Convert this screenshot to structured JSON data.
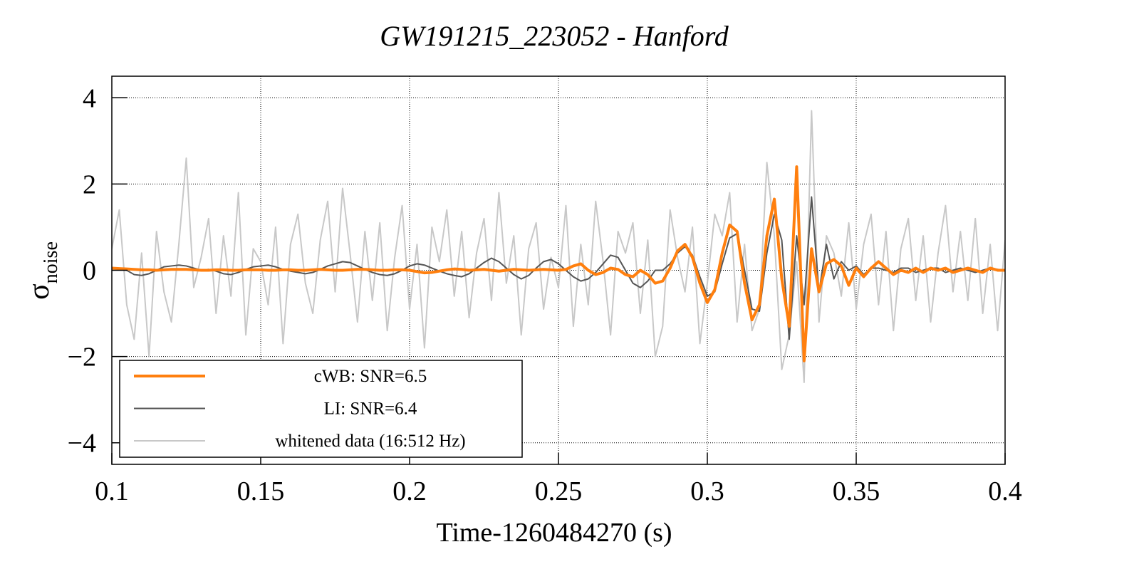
{
  "chart_data": {
    "type": "line",
    "title": "GW191215_223052 - Hanford",
    "xlabel": "Time-1260484270 (s)",
    "ylabel": "σ",
    "ylabel_sub": "noise",
    "xlim": [
      0.1,
      0.4
    ],
    "ylim": [
      -4.5,
      4.5
    ],
    "xticks": [
      0.1,
      0.15,
      0.2,
      0.25,
      0.3,
      0.35,
      0.4
    ],
    "yticks": [
      {
        "value": -4,
        "label": "−4"
      },
      {
        "value": -2,
        "label": "−2"
      },
      0,
      2,
      4
    ],
    "grid": true,
    "legend": "lower left",
    "x": [
      0.1,
      0.1025,
      0.105,
      0.1075,
      0.11,
      0.1125,
      0.115,
      0.1175,
      0.12,
      0.1225,
      0.125,
      0.1275,
      0.13,
      0.1325,
      0.135,
      0.1375,
      0.14,
      0.1425,
      0.145,
      0.1475,
      0.15,
      0.1525,
      0.155,
      0.1575,
      0.16,
      0.1625,
      0.165,
      0.1675,
      0.17,
      0.1725,
      0.175,
      0.1775,
      0.18,
      0.1825,
      0.185,
      0.1875,
      0.19,
      0.1925,
      0.195,
      0.1975,
      0.2,
      0.2025,
      0.205,
      0.2075,
      0.21,
      0.2125,
      0.215,
      0.2175,
      0.22,
      0.2225,
      0.225,
      0.2275,
      0.23,
      0.2325,
      0.235,
      0.2375,
      0.24,
      0.2425,
      0.245,
      0.2475,
      0.25,
      0.2525,
      0.255,
      0.2575,
      0.26,
      0.2625,
      0.265,
      0.2675,
      0.27,
      0.2725,
      0.275,
      0.2775,
      0.28,
      0.2825,
      0.285,
      0.2875,
      0.29,
      0.2925,
      0.295,
      0.2975,
      0.3,
      0.3025,
      0.305,
      0.3075,
      0.31,
      0.3125,
      0.315,
      0.3175,
      0.32,
      0.3225,
      0.325,
      0.3275,
      0.33,
      0.3325,
      0.335,
      0.3375,
      0.34,
      0.3425,
      0.345,
      0.3475,
      0.35,
      0.3525,
      0.355,
      0.3575,
      0.36,
      0.3625,
      0.365,
      0.3675,
      0.37,
      0.3725,
      0.375,
      0.3775,
      0.38,
      0.3825,
      0.385,
      0.3875,
      0.39,
      0.3925,
      0.395,
      0.3975,
      0.4
    ],
    "series": [
      {
        "name": "whitened data (16:512 Hz)",
        "color": "#c8c8c8",
        "width": 2,
        "values": [
          0.5,
          1.4,
          -0.8,
          -1.6,
          0.4,
          -2.0,
          0.9,
          -0.5,
          -1.2,
          0.6,
          2.6,
          -0.4,
          0.3,
          1.2,
          -1.0,
          0.8,
          -0.6,
          1.8,
          -1.5,
          0.5,
          0.2,
          -0.8,
          1.0,
          -1.7,
          0.6,
          1.3,
          -0.3,
          -1.0,
          0.7,
          1.6,
          -0.5,
          1.9,
          0.4,
          -1.2,
          0.9,
          -0.7,
          1.1,
          -1.4,
          0.3,
          1.5,
          -0.9,
          0.6,
          -1.8,
          1.0,
          0.2,
          1.4,
          -0.6,
          0.9,
          -1.1,
          0.4,
          1.2,
          -0.7,
          1.8,
          -0.3,
          0.8,
          -1.5,
          0.5,
          1.1,
          -0.9,
          0.3,
          -0.4,
          1.5,
          -1.3,
          0.6,
          -0.8,
          1.6,
          0.2,
          -1.5,
          0.9,
          0.4,
          1.1,
          -1.0,
          0.7,
          -2.0,
          -1.3,
          1.4,
          0.3,
          -0.5,
          1.0,
          -1.7,
          -0.3,
          1.3,
          0.8,
          1.8,
          -1.2,
          0.6,
          -1.4,
          -0.9,
          2.5,
          0.8,
          -2.3,
          -1.5,
          0.2,
          -2.6,
          3.7,
          -1.2,
          0.8,
          0.4,
          -0.6,
          1.1,
          -0.9,
          0.6,
          1.3,
          -0.8,
          0.9,
          -1.4,
          0.5,
          1.2,
          -0.7,
          0.8,
          -1.2,
          0.4,
          1.5,
          -0.5,
          0.9,
          -0.7,
          1.2,
          -1.0,
          0.6,
          -1.4,
          0.7
        ]
      },
      {
        "name": "LI: SNR=6.4",
        "color": "#555555",
        "width": 2,
        "values": [
          0.05,
          0.03,
          0,
          -0.1,
          -0.12,
          -0.08,
          0,
          0.08,
          0.1,
          0.12,
          0.1,
          0.05,
          0,
          0.02,
          -0.02,
          -0.08,
          -0.1,
          -0.05,
          0.02,
          0.08,
          0.1,
          0.12,
          0.08,
          0.02,
          -0.02,
          -0.05,
          -0.08,
          -0.05,
          0.02,
          0.1,
          0.15,
          0.2,
          0.18,
          0.1,
          0.02,
          -0.05,
          -0.1,
          -0.12,
          -0.08,
          0,
          0.1,
          0.15,
          0.12,
          0.05,
          -0.02,
          -0.08,
          -0.12,
          -0.15,
          -0.08,
          0.05,
          0.18,
          0.28,
          0.2,
          0.05,
          -0.1,
          -0.2,
          -0.12,
          0.05,
          0.2,
          0.25,
          0.15,
          0,
          -0.15,
          -0.25,
          -0.2,
          -0.05,
          0.15,
          0.35,
          0.3,
          0,
          -0.3,
          -0.4,
          -0.25,
          0,
          0,
          0.15,
          0.4,
          0.55,
          0.35,
          -0.15,
          -0.6,
          -0.5,
          0.15,
          0.75,
          0.85,
          0,
          -0.9,
          -0.95,
          0.4,
          1.3,
          0.7,
          -1.6,
          0.8,
          -0.8,
          1.7,
          -0.5,
          0.6,
          -0.2,
          0.2,
          0,
          0.1,
          -0.1,
          0.05,
          0.05,
          0,
          -0.05,
          0.05,
          0.05,
          -0.05,
          0,
          0.05,
          0.05,
          -0.05,
          0,
          0.05,
          0,
          -0.05,
          0,
          0.05,
          0.02,
          0
        ]
      },
      {
        "name": "cWB: SNR=6.5",
        "color": "#ff7f0e",
        "width": 4,
        "values": [
          0.05,
          0.04,
          0.03,
          0.02,
          0.01,
          0.01,
          0,
          0.01,
          0.02,
          0.02,
          0.02,
          0.01,
          0,
          0,
          0.01,
          0.01,
          0,
          0,
          0.01,
          0.01,
          0.01,
          0,
          0,
          0.01,
          0.01,
          0,
          0,
          0.01,
          0.02,
          0.01,
          0,
          0,
          0.01,
          0.02,
          0.02,
          0.01,
          0,
          0,
          0.01,
          0.01,
          0,
          -0.03,
          -0.06,
          -0.05,
          -0.02,
          0.01,
          0.03,
          0.02,
          0,
          0.01,
          0.02,
          0,
          -0.02,
          0,
          0.02,
          0.01,
          0,
          0.01,
          0.02,
          0.01,
          0,
          0.02,
          0.1,
          0.15,
          0,
          -0.1,
          -0.05,
          0.05,
          0.02,
          -0.1,
          -0.15,
          0,
          -0.1,
          -0.3,
          -0.25,
          0.05,
          0.45,
          0.6,
          0.3,
          -0.3,
          -0.75,
          -0.45,
          0.4,
          1.05,
          0.9,
          -0.3,
          -1.15,
          -0.8,
          0.8,
          1.65,
          -0.2,
          -1.3,
          2.4,
          -2.1,
          0.5,
          -0.5,
          0.15,
          0.25,
          0.1,
          -0.35,
          0.05,
          -0.15,
          0.05,
          0.2,
          0.05,
          -0.1,
          0,
          -0.05,
          0.05,
          -0.05,
          0.05,
          0,
          0.05,
          -0.05,
          0,
          0.05,
          0,
          -0.05,
          0.05,
          0,
          0
        ]
      }
    ]
  }
}
